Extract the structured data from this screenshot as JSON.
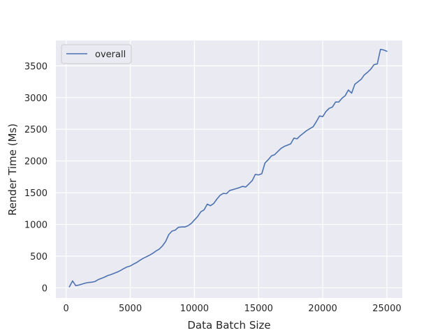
{
  "chart_data": {
    "type": "line",
    "xlabel": "Data Batch Size",
    "ylabel": "Render Time (Ms)",
    "xlim": [
      -800,
      26200
    ],
    "ylim": [
      -160,
      3900
    ],
    "xticks": [
      0,
      5000,
      10000,
      15000,
      20000,
      25000
    ],
    "yticks": [
      0,
      500,
      1000,
      1500,
      2000,
      2500,
      3000,
      3500
    ],
    "grid": true,
    "legend_position": "top-left",
    "colors": {
      "background": "#eaeaf2",
      "grid": "#ffffff",
      "line": "#4c72b0",
      "text": "#262626"
    },
    "series": [
      {
        "name": "overall",
        "x": [
          250,
          500,
          750,
          1000,
          1250,
          1500,
          1750,
          2000,
          2250,
          2500,
          2750,
          3000,
          3250,
          3500,
          3750,
          4000,
          4250,
          4500,
          4750,
          5000,
          5250,
          5500,
          5750,
          6000,
          6250,
          6500,
          6750,
          7000,
          7250,
          7500,
          7750,
          8000,
          8250,
          8500,
          8750,
          9000,
          9250,
          9500,
          9750,
          10000,
          10250,
          10500,
          10750,
          11000,
          11250,
          11500,
          11750,
          12000,
          12250,
          12500,
          12750,
          13000,
          13250,
          13500,
          13750,
          14000,
          14250,
          14500,
          14750,
          15000,
          15250,
          15500,
          15750,
          16000,
          16250,
          16500,
          16750,
          17000,
          17250,
          17500,
          17750,
          18000,
          18250,
          18500,
          18750,
          19000,
          19250,
          19500,
          19750,
          20000,
          20250,
          20500,
          20750,
          21000,
          21250,
          21500,
          21750,
          22000,
          22250,
          22500,
          22750,
          23000,
          23250,
          23500,
          23750,
          24000,
          24250,
          24500,
          24750,
          25000
        ],
        "values": [
          15,
          110,
          35,
          45,
          60,
          75,
          85,
          90,
          100,
          130,
          150,
          170,
          195,
          210,
          230,
          250,
          275,
          305,
          330,
          345,
          375,
          400,
          435,
          465,
          490,
          515,
          545,
          580,
          610,
          660,
          730,
          840,
          895,
          910,
          955,
          960,
          960,
          980,
          1015,
          1070,
          1125,
          1200,
          1230,
          1320,
          1295,
          1330,
          1400,
          1460,
          1490,
          1485,
          1535,
          1550,
          1565,
          1580,
          1600,
          1590,
          1640,
          1690,
          1790,
          1780,
          1800,
          1970,
          2020,
          2080,
          2100,
          2150,
          2200,
          2230,
          2250,
          2270,
          2360,
          2350,
          2400,
          2440,
          2480,
          2510,
          2540,
          2620,
          2710,
          2700,
          2780,
          2830,
          2850,
          2930,
          2930,
          2990,
          3030,
          3120,
          3070,
          3210,
          3250,
          3290,
          3360,
          3400,
          3450,
          3520,
          3530,
          3760,
          3750,
          3730
        ]
      }
    ]
  }
}
